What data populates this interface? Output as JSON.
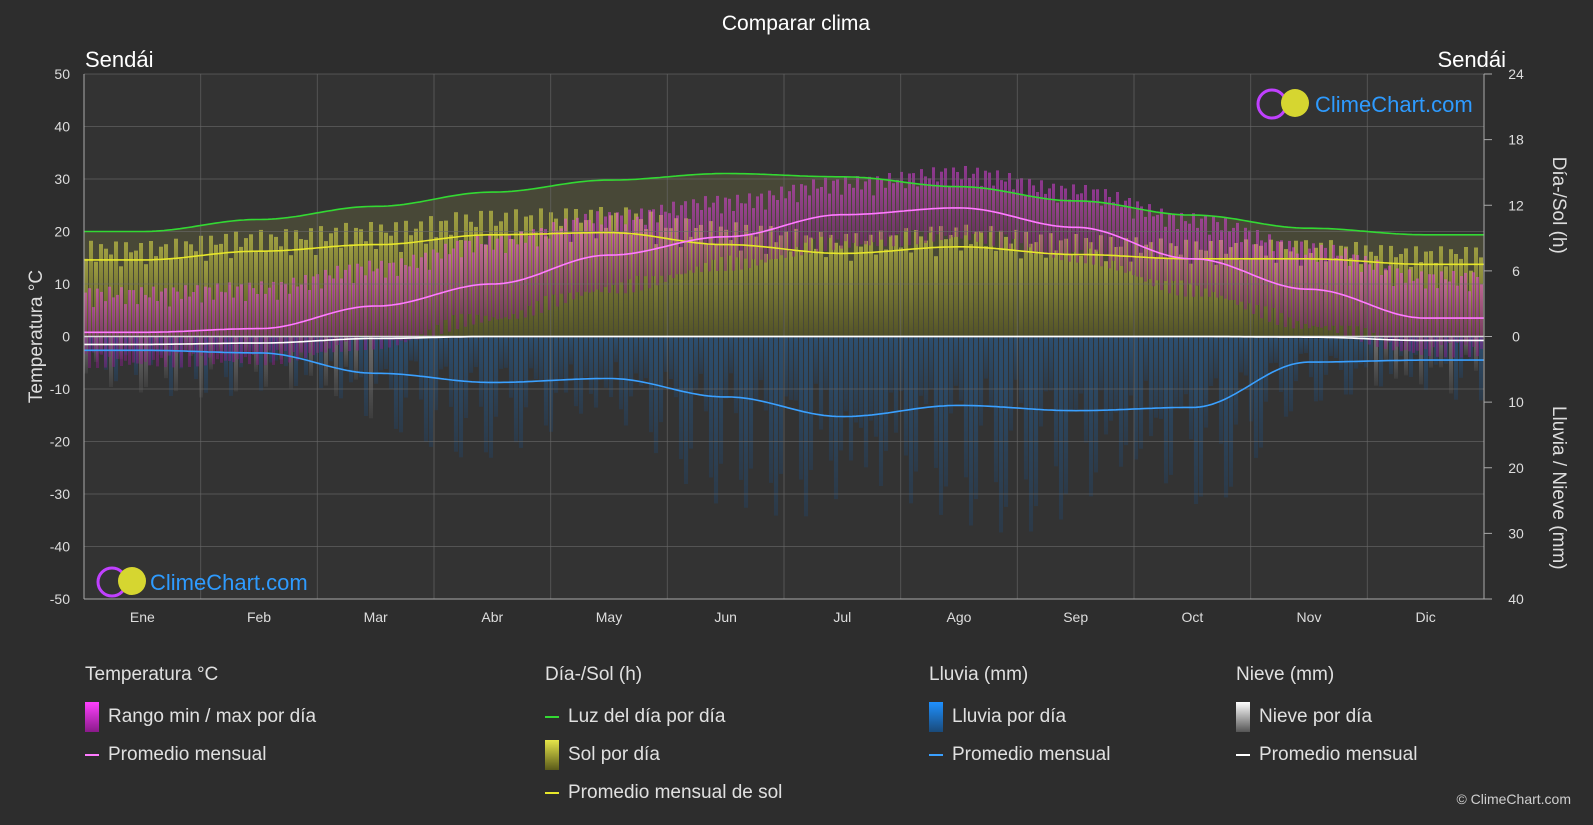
{
  "title": "Comparar clima",
  "location_left": "Sendái",
  "location_right": "Sendái",
  "watermark": "ClimeChart.com",
  "copyright": "© ClimeChart.com",
  "colors": {
    "background": "#2d2d2d",
    "temp_range": "#d21fd2",
    "temp_avg": "#ff7bff",
    "daylight": "#33d933",
    "sun_fill": "#8a8a2a",
    "sun_avg": "#e6e62a",
    "rain": "#2a7fc4",
    "rain_avg": "#3aa0ff",
    "snow": "#9a9a9a",
    "snow_avg": "#ffffff",
    "brand": "#2e9bff"
  },
  "chart_data": {
    "type": "line",
    "title": "Comparar clima",
    "categories": [
      "Ene",
      "Feb",
      "Mar",
      "Abr",
      "May",
      "Jun",
      "Jul",
      "Ago",
      "Sep",
      "Oct",
      "Nov",
      "Dic"
    ],
    "left_axis": {
      "label": "Temperatura °C",
      "min": -50,
      "max": 50,
      "ticks": [
        50,
        40,
        30,
        20,
        10,
        0,
        -10,
        -20,
        -30,
        -40,
        -50
      ]
    },
    "right_axis_top": {
      "label": "Día-/Sol (h)",
      "min": 0,
      "max": 24,
      "ticks": [
        24,
        18,
        12,
        6,
        0
      ]
    },
    "right_axis_bottom": {
      "label": "Lluvia / Nieve (mm)",
      "min": 0,
      "max": 40,
      "ticks": [
        0,
        10,
        20,
        30,
        40
      ]
    },
    "grid": true,
    "series": [
      {
        "name": "Luz del día por día",
        "axis": "hours",
        "values": [
          9.6,
          10.7,
          11.9,
          13.2,
          14.3,
          14.9,
          14.6,
          13.7,
          12.4,
          11.1,
          9.9,
          9.3
        ]
      },
      {
        "name": "Promedio mensual de sol",
        "axis": "hours",
        "values": [
          7.0,
          7.8,
          8.4,
          9.3,
          9.5,
          8.4,
          7.6,
          8.2,
          7.5,
          7.1,
          7.1,
          6.6
        ]
      },
      {
        "name": "Promedio mensual",
        "group": "Temperatura °C",
        "axis": "temperature",
        "values": [
          0.8,
          1.5,
          5.8,
          10.0,
          15.5,
          19.0,
          23.2,
          24.5,
          20.8,
          14.8,
          9.0,
          3.5
        ]
      },
      {
        "name": "Temp min",
        "axis": "temperature",
        "values": [
          -3.0,
          -2.5,
          0.5,
          5.5,
          11.0,
          15.5,
          19.5,
          21.0,
          17.0,
          10.5,
          4.0,
          -1.0
        ]
      },
      {
        "name": "Temp max",
        "axis": "temperature",
        "values": [
          5.5,
          6.5,
          10.5,
          15.5,
          20.0,
          23.0,
          26.5,
          28.5,
          25.0,
          19.5,
          14.0,
          8.5
        ]
      },
      {
        "name": "Promedio mensual",
        "group": "Lluvia (mm)",
        "axis": "precipitation",
        "values": [
          2.1,
          2.5,
          5.6,
          7.0,
          6.4,
          9.2,
          12.2,
          10.5,
          11.3,
          10.8,
          3.9,
          3.6
        ]
      },
      {
        "name": "Promedio mensual",
        "group": "Nieve (mm)",
        "axis": "precipitation",
        "values": [
          1.2,
          1.0,
          0.3,
          0.0,
          0.0,
          0.0,
          0.0,
          0.0,
          0.0,
          0.0,
          0.1,
          0.6
        ]
      }
    ]
  },
  "legend": {
    "temperature": {
      "title": "Temperatura °C",
      "items": [
        "Rango min / max por día",
        "Promedio mensual"
      ]
    },
    "sun": {
      "title": "Día-/Sol (h)",
      "items": [
        "Luz del día por día",
        "Sol por día",
        "Promedio mensual de sol"
      ]
    },
    "rain": {
      "title": "Lluvia (mm)",
      "items": [
        "Lluvia por día",
        "Promedio mensual"
      ]
    },
    "snow": {
      "title": "Nieve (mm)",
      "items": [
        "Nieve por día",
        "Promedio mensual"
      ]
    }
  }
}
